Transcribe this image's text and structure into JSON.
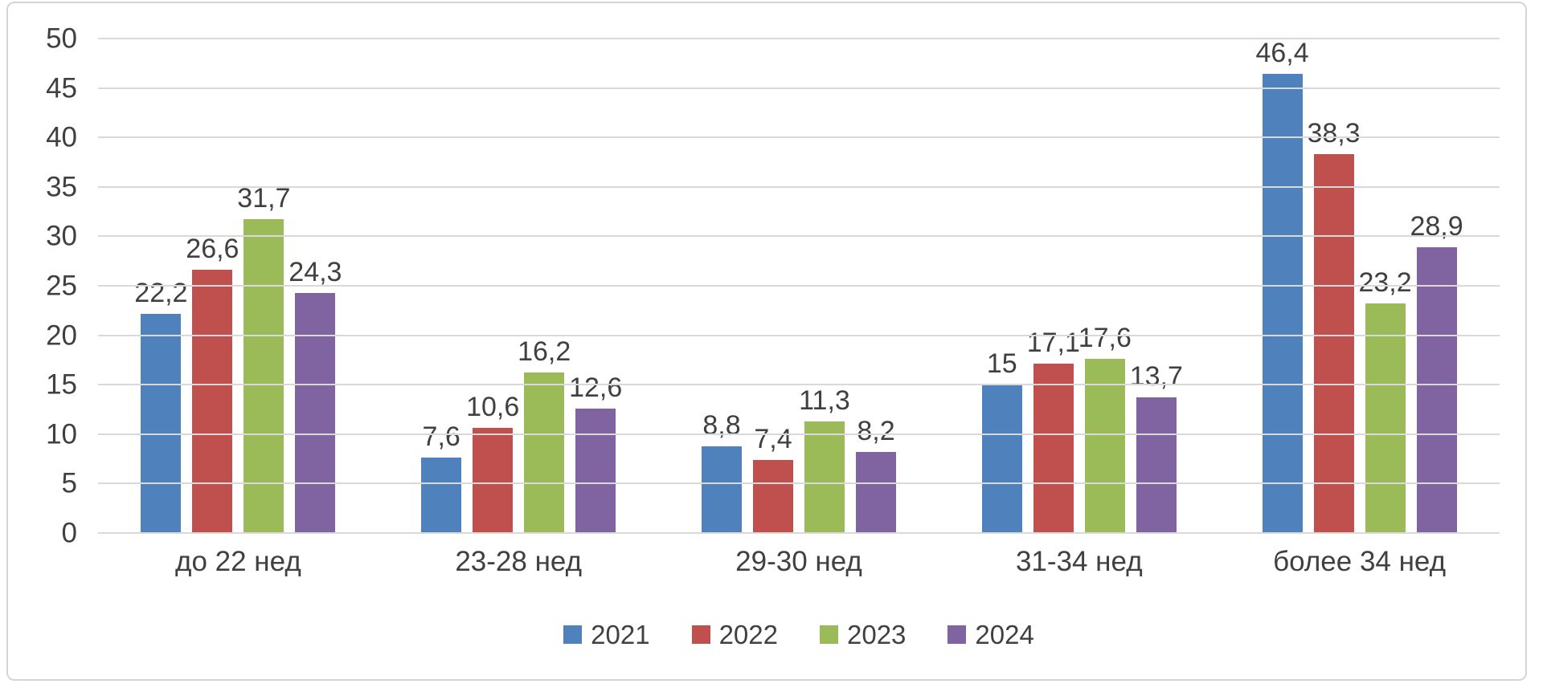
{
  "chart_data": {
    "type": "bar",
    "title": "",
    "xlabel": "",
    "ylabel": "",
    "categories": [
      "до 22 нед",
      "23-28 нед",
      "29-30 нед",
      "31-34 нед",
      "более 34 нед"
    ],
    "series": [
      {
        "name": "2021",
        "color": "#4F81BD",
        "values": [
          22.2,
          7.6,
          8.8,
          15,
          46.4
        ],
        "value_labels": [
          "22,2",
          "7,6",
          "8,8",
          "15",
          "46,4"
        ]
      },
      {
        "name": "2022",
        "color": "#C0504D",
        "values": [
          26.6,
          10.6,
          7.4,
          17.1,
          38.3
        ],
        "value_labels": [
          "26,6",
          "10,6",
          "7,4",
          "17,1",
          "38,3"
        ]
      },
      {
        "name": "2023",
        "color": "#9BBB59",
        "values": [
          31.7,
          16.2,
          11.3,
          17.6,
          23.2
        ],
        "value_labels": [
          "31,7",
          "16,2",
          "11,3",
          "17,6",
          "23,2"
        ]
      },
      {
        "name": "2024",
        "color": "#8064A2",
        "values": [
          24.3,
          12.6,
          8.2,
          13.7,
          28.9
        ],
        "value_labels": [
          "24,3",
          "12,6",
          "8,2",
          "13,7",
          "28,9"
        ]
      }
    ],
    "ylim": [
      0,
      50
    ],
    "yticks": [
      0,
      5,
      10,
      15,
      20,
      25,
      30,
      35,
      40,
      45,
      50
    ],
    "grid": true,
    "legend_position": "bottom"
  },
  "frame": {
    "border_color": "#D5D5D5",
    "background": "#FFFFFF"
  },
  "styles": {
    "text_color": "#404040",
    "gridline_color": "#D9D9D9"
  }
}
